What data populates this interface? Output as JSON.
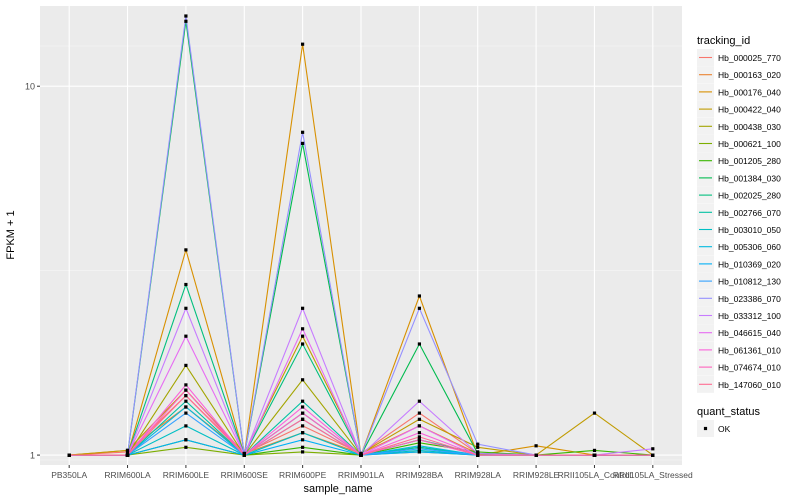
{
  "chart_data": {
    "type": "line",
    "title": "",
    "xlabel": "sample_name",
    "ylabel": "FPKM + 1",
    "y_scale": "log10",
    "ylim": [
      0.94,
      16.5
    ],
    "yticks": [
      1,
      10
    ],
    "ytick_labels": [
      "1",
      "10"
    ],
    "grid": true,
    "legend_position": "right",
    "categories": [
      "PB350LA",
      "RRIM600LA",
      "RRIM600LE",
      "RRIM600SE",
      "RRIM600PE",
      "RRIM901LA",
      "RRIM928BA",
      "RRIM928LA",
      "RRIM928LE",
      "RRII105LA_Control",
      "RRII105LA_Stressed"
    ],
    "legend_title": "tracking_id",
    "series": [
      {
        "name": "Hb_000025_770",
        "color": "#F8766D",
        "values": [
          1,
          1.02,
          1.45,
          1.01,
          1.2,
          1.01,
          1.3,
          1.01,
          1.0,
          1.0,
          1.0
        ]
      },
      {
        "name": "Hb_000163_020",
        "color": "#EA8331",
        "values": [
          1,
          1.03,
          1.35,
          1.01,
          1.15,
          1.01,
          1.2,
          1.01,
          1.0,
          1.0,
          1.0
        ]
      },
      {
        "name": "Hb_000176_040",
        "color": "#D89000",
        "values": [
          1,
          1.0,
          3.6,
          1.0,
          13.0,
          1.0,
          2.7,
          1.0,
          1.06,
          1.0,
          1.0
        ]
      },
      {
        "name": "Hb_000422_040",
        "color": "#C09B00",
        "values": [
          1,
          1.03,
          1.5,
          1.01,
          2.1,
          1.01,
          1.25,
          1.05,
          1.0,
          1.3,
          1.0
        ]
      },
      {
        "name": "Hb_000438_030",
        "color": "#A3A500",
        "values": [
          1,
          1.0,
          1.75,
          1.0,
          1.6,
          1.0,
          1.02,
          1.0,
          1.0,
          1.0,
          1.0
        ]
      },
      {
        "name": "Hb_000621_100",
        "color": "#7CAE00",
        "values": [
          1,
          1.0,
          1.05,
          1.0,
          1.02,
          1.0,
          1.05,
          1.0,
          1.0,
          1.0,
          1.0
        ]
      },
      {
        "name": "Hb_001205_280",
        "color": "#39B600",
        "values": [
          1,
          1.0,
          1.1,
          1.0,
          1.05,
          1.0,
          1.08,
          1.02,
          1.0,
          1.03,
          1.0
        ]
      },
      {
        "name": "Hb_001384_030",
        "color": "#00BB4E",
        "values": [
          1,
          1.0,
          15.0,
          1.0,
          7.0,
          1.0,
          2.0,
          1.01,
          1.0,
          1.0,
          1.0
        ]
      },
      {
        "name": "Hb_002025_280",
        "color": "#00BF7D",
        "values": [
          1,
          1.0,
          2.9,
          1.0,
          2.0,
          1.0,
          1.1,
          1.01,
          1.0,
          1.0,
          1.0
        ]
      },
      {
        "name": "Hb_002766_070",
        "color": "#00C1A3",
        "values": [
          1,
          1.0,
          1.4,
          1.0,
          1.4,
          1.0,
          1.05,
          1.0,
          1.0,
          1.0,
          1.0
        ]
      },
      {
        "name": "Hb_003010_050",
        "color": "#00BFC4",
        "values": [
          1,
          1.0,
          1.2,
          1.0,
          1.15,
          1.0,
          1.03,
          1.0,
          1.0,
          1.0,
          1.0
        ]
      },
      {
        "name": "Hb_005306_060",
        "color": "#00BAE0",
        "values": [
          1,
          1.0,
          1.35,
          1.0,
          1.3,
          1.0,
          1.06,
          1.0,
          1.0,
          1.0,
          1.0
        ]
      },
      {
        "name": "Hb_010369_020",
        "color": "#00B0F6",
        "values": [
          1,
          1.0,
          1.1,
          1.0,
          1.1,
          1.0,
          1.02,
          1.0,
          1.0,
          1.0,
          1.0
        ]
      },
      {
        "name": "Hb_010812_130",
        "color": "#35A2FF",
        "values": [
          1,
          1.0,
          1.3,
          1.0,
          1.25,
          1.0,
          1.04,
          1.0,
          1.0,
          1.0,
          1.0
        ]
      },
      {
        "name": "Hb_023386_070",
        "color": "#9590FF",
        "values": [
          1,
          1.0,
          15.5,
          1.0,
          7.5,
          1.0,
          2.5,
          1.07,
          1.0,
          1.0,
          1.0
        ]
      },
      {
        "name": "Hb_033312_100",
        "color": "#C77CFF",
        "values": [
          1,
          1.0,
          2.5,
          1.0,
          2.5,
          1.0,
          1.4,
          1.01,
          1.0,
          1.0,
          1.04
        ]
      },
      {
        "name": "Hb_046615_040",
        "color": "#E76BF3",
        "values": [
          1,
          1.0,
          2.1,
          1.0,
          2.2,
          1.0,
          1.2,
          1.0,
          1.0,
          1.0,
          1.0
        ]
      },
      {
        "name": "Hb_061361_010",
        "color": "#FA62DB",
        "values": [
          1,
          1.0,
          1.55,
          1.0,
          1.35,
          1.0,
          1.15,
          1.0,
          1.0,
          1.0,
          1.0
        ]
      },
      {
        "name": "Hb_074674_010",
        "color": "#FF62BC",
        "values": [
          1,
          1.0,
          1.5,
          1.0,
          1.3,
          1.0,
          1.1,
          1.0,
          1.0,
          1.0,
          1.0
        ]
      },
      {
        "name": "Hb_147060_010",
        "color": "#FF6C91",
        "values": [
          1,
          1.0,
          1.45,
          1.0,
          1.25,
          1.0,
          1.12,
          1.0,
          1.0,
          1.0,
          1.0
        ]
      }
    ],
    "shape_legend": {
      "title": "quant_status",
      "entries": [
        {
          "label": "OK"
        }
      ]
    }
  }
}
